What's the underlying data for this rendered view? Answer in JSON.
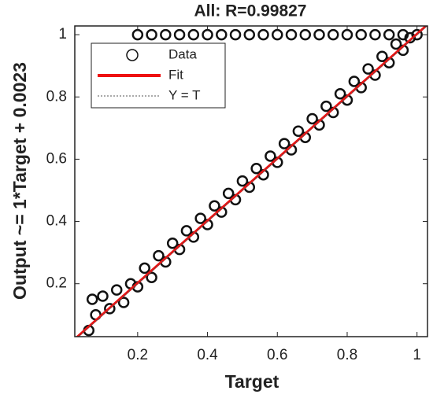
{
  "chart_data": {
    "type": "scatter",
    "title": "All: R=0.99827",
    "xlabel": "Target",
    "ylabel": "Output ~= 1*Target + 0.0023",
    "xlim": [
      0.02,
      1.03
    ],
    "ylim": [
      0.03,
      1.028
    ],
    "xticks": [
      0.2,
      0.4,
      0.6,
      0.8,
      1
    ],
    "yticks": [
      0.2,
      0.4,
      0.6,
      0.8,
      1
    ],
    "legend": "top-left",
    "series": [
      {
        "name": "Data",
        "color": "#111111",
        "style": "marker",
        "x": [
          0.06,
          0.07,
          0.08,
          0.1,
          0.12,
          0.14,
          0.16,
          0.18,
          0.2,
          0.22,
          0.24,
          0.26,
          0.28,
          0.3,
          0.32,
          0.34,
          0.36,
          0.38,
          0.4,
          0.42,
          0.44,
          0.46,
          0.48,
          0.5,
          0.52,
          0.54,
          0.56,
          0.58,
          0.6,
          0.62,
          0.64,
          0.66,
          0.68,
          0.7,
          0.72,
          0.74,
          0.76,
          0.78,
          0.8,
          0.82,
          0.84,
          0.86,
          0.88,
          0.9,
          0.92,
          0.94,
          0.96,
          0.98,
          1.0,
          0.2,
          0.24,
          0.28,
          0.32,
          0.36,
          0.4,
          0.44,
          0.48,
          0.52,
          0.56,
          0.6,
          0.64,
          0.68,
          0.72,
          0.76,
          0.8,
          0.84,
          0.88,
          0.92,
          0.96
        ],
        "values": [
          0.05,
          0.15,
          0.1,
          0.16,
          0.12,
          0.18,
          0.14,
          0.2,
          0.19,
          0.25,
          0.22,
          0.29,
          0.27,
          0.33,
          0.31,
          0.37,
          0.35,
          0.41,
          0.39,
          0.45,
          0.43,
          0.49,
          0.47,
          0.53,
          0.51,
          0.57,
          0.55,
          0.61,
          0.59,
          0.65,
          0.63,
          0.69,
          0.67,
          0.73,
          0.71,
          0.77,
          0.75,
          0.81,
          0.79,
          0.85,
          0.83,
          0.89,
          0.87,
          0.93,
          0.91,
          0.97,
          0.95,
          0.99,
          1.0,
          1,
          1,
          1,
          1,
          1,
          1,
          1,
          1,
          1,
          1,
          1,
          1,
          1,
          1,
          1,
          1,
          1,
          1,
          1,
          1
        ]
      },
      {
        "name": "Fit",
        "color": "#ee1111",
        "style": "line",
        "x": [
          0.02,
          1.03
        ],
        "values": [
          0.0223,
          1.0323
        ]
      },
      {
        "name": "Y = T",
        "color": "#555555",
        "style": "dotted",
        "x": [
          0.02,
          1.03
        ],
        "values": [
          0.02,
          1.03
        ]
      }
    ]
  }
}
